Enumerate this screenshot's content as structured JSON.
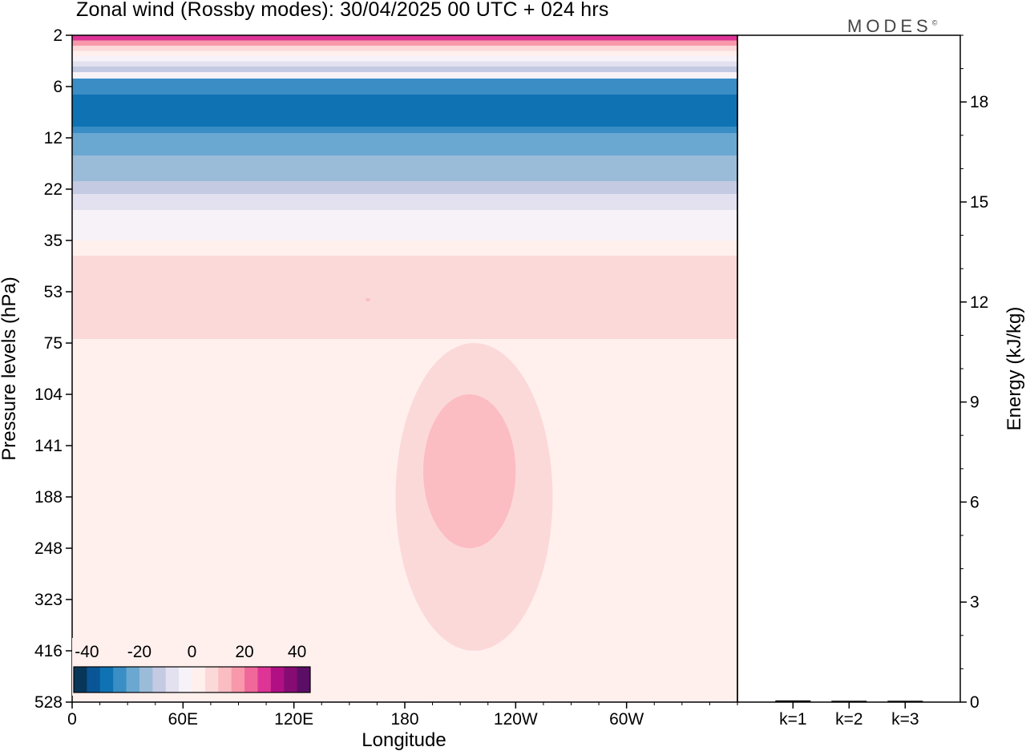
{
  "chart_data": [
    {
      "type": "heatmap",
      "title": "Zonal wind (Rossby modes):  30/04/2025  00 UTC  + 024 hrs",
      "xlabel": "Longitude",
      "ylabel": "Pressure levels (hPa)",
      "x_ticks": [
        "0",
        "60E",
        "120E",
        "180",
        "120W",
        "60W"
      ],
      "x_tick_degrees": [
        0,
        60,
        120,
        180,
        240,
        300
      ],
      "xlim": [
        0,
        360
      ],
      "y_ticks": [
        "2",
        "6",
        "12",
        "22",
        "35",
        "53",
        "75",
        "104",
        "141",
        "188",
        "248",
        "323",
        "416",
        "528"
      ],
      "y_scale": "level index (top to bottom)",
      "colorbar": {
        "tick_labels": [
          "-40",
          "-20",
          "0",
          "20",
          "40"
        ],
        "range": [
          -45,
          45
        ],
        "step": 5,
        "colors": [
          "#083659",
          "#0a5596",
          "#0f72b3",
          "#3a8ec5",
          "#6aa8d1",
          "#9bbcd9",
          "#c3cae2",
          "#e3e1ef",
          "#f7f2f7",
          "#fff0ee",
          "#fcd9d9",
          "#fbbcc2",
          "#f898aa",
          "#f0689a",
          "#dd3496",
          "#b10f84",
          "#860c74",
          "#5b0e66"
        ]
      },
      "field_bands": [
        {
          "level": "2",
          "wind": 25
        },
        {
          "level": "2",
          "wind": 15
        },
        {
          "level": "3",
          "wind": 5
        },
        {
          "level": "4",
          "wind": -5
        },
        {
          "level": "5",
          "wind": -15
        },
        {
          "level": "6",
          "wind": -30
        },
        {
          "level": "9",
          "wind": -32
        },
        {
          "level": "12",
          "wind": -25
        },
        {
          "level": "17",
          "wind": -15
        },
        {
          "level": "22",
          "wind": -12
        },
        {
          "level": "28",
          "wind": -5
        },
        {
          "level": "35",
          "wind": 2
        },
        {
          "level": "53",
          "wind": 7
        },
        {
          "level": "75",
          "wind": 3
        },
        {
          "level": "104",
          "wind": 0
        },
        {
          "level": "528",
          "wind": 0
        }
      ],
      "features": [
        {
          "name": "pink maximum",
          "lon_range": [
            190,
            240
          ],
          "level_range": [
            "104",
            "248"
          ],
          "wind": 12
        },
        {
          "name": "light-pink tongue",
          "lon_range": [
            175,
            260
          ],
          "level_range": [
            "75",
            "416"
          ],
          "wind": 7
        }
      ]
    },
    {
      "type": "bar",
      "ylabel": "Energy (kJ/kg)",
      "categories": [
        "k=1",
        "k=2",
        "k=3"
      ],
      "values": [
        0.05,
        0.04,
        0.04
      ],
      "ylim": [
        0,
        20
      ],
      "y_ticks": [
        "0",
        "3",
        "6",
        "9",
        "12",
        "15",
        "18"
      ]
    }
  ],
  "logo": {
    "text": "MODES",
    "mark": "©"
  }
}
